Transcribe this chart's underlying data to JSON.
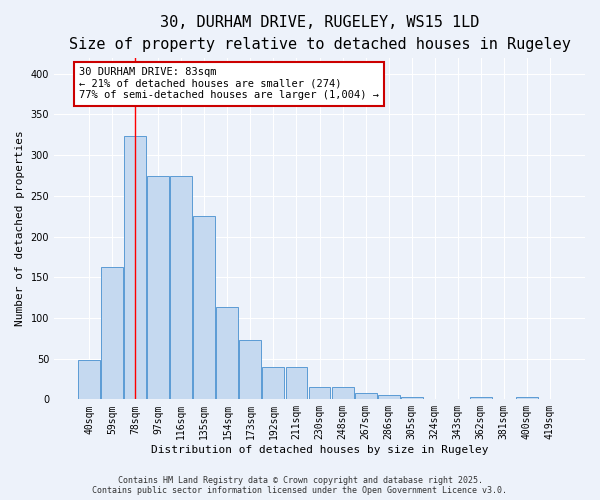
{
  "title1": "30, DURHAM DRIVE, RUGELEY, WS15 1LD",
  "title2": "Size of property relative to detached houses in Rugeley",
  "xlabel": "Distribution of detached houses by size in Rugeley",
  "ylabel": "Number of detached properties",
  "categories": [
    "40sqm",
    "59sqm",
    "78sqm",
    "97sqm",
    "116sqm",
    "135sqm",
    "154sqm",
    "173sqm",
    "192sqm",
    "211sqm",
    "230sqm",
    "248sqm",
    "267sqm",
    "286sqm",
    "305sqm",
    "324sqm",
    "343sqm",
    "362sqm",
    "381sqm",
    "400sqm",
    "419sqm"
  ],
  "bar_values": [
    48,
    163,
    323,
    275,
    275,
    225,
    113,
    73,
    40,
    40,
    15,
    15,
    8,
    5,
    3,
    0,
    0,
    3,
    0,
    3,
    0
  ],
  "bar_color": "#c5d9f0",
  "bar_edge_color": "#5b9bd5",
  "bar_width": 0.95,
  "ylim": [
    0,
    420
  ],
  "yticks": [
    0,
    50,
    100,
    150,
    200,
    250,
    300,
    350,
    400
  ],
  "red_line_x": 1.98,
  "annotation_text": "30 DURHAM DRIVE: 83sqm\n← 21% of detached houses are smaller (274)\n77% of semi-detached houses are larger (1,004) →",
  "annotation_box_color": "#ffffff",
  "annotation_border_color": "#cc0000",
  "footer_line1": "Contains HM Land Registry data © Crown copyright and database right 2025.",
  "footer_line2": "Contains public sector information licensed under the Open Government Licence v3.0.",
  "bg_color": "#edf2fa",
  "grid_color": "#ffffff",
  "title1_fontsize": 11,
  "title2_fontsize": 9.5,
  "tick_fontsize": 7,
  "ylabel_fontsize": 8,
  "xlabel_fontsize": 8,
  "annotation_fontsize": 7.5,
  "footer_fontsize": 6
}
